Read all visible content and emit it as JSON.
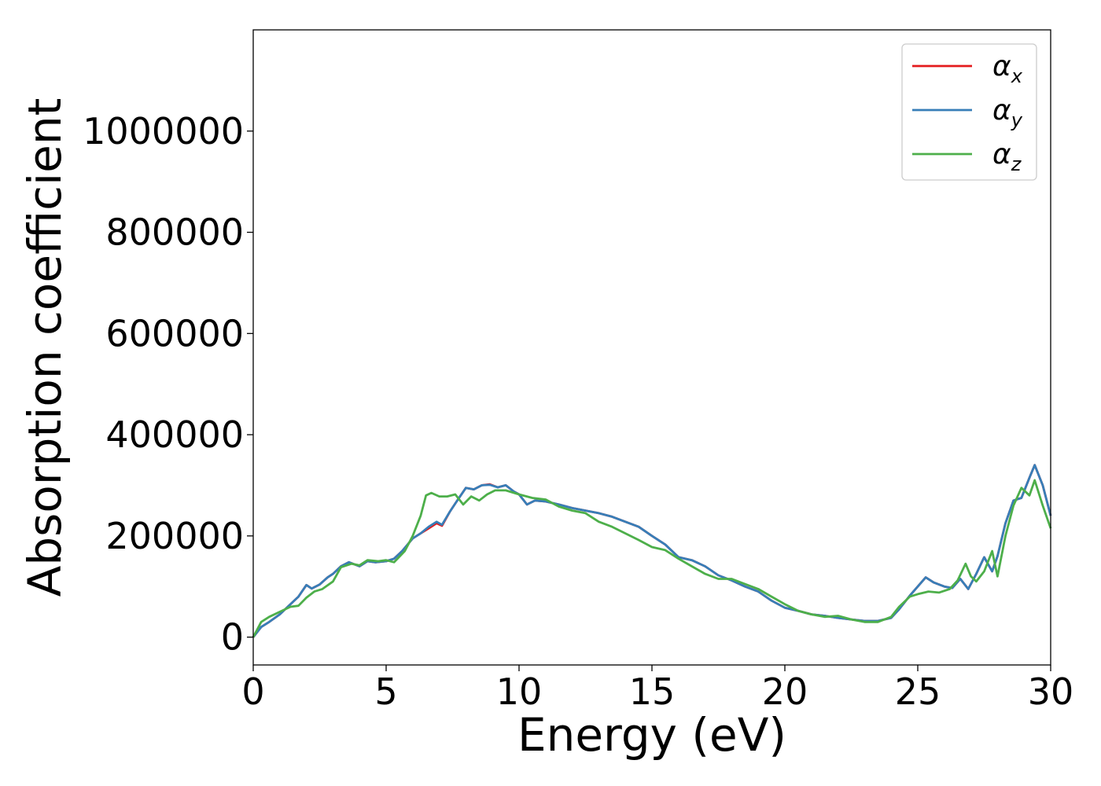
{
  "chart_data": {
    "type": "line",
    "title": "",
    "xlabel": "Energy (eV)",
    "ylabel": "Absorption coefficient",
    "xlim": [
      0,
      30
    ],
    "ylim": [
      -55000,
      1200000
    ],
    "xticks": [
      0,
      5,
      10,
      15,
      20,
      25,
      30
    ],
    "yticks": [
      0,
      200000,
      400000,
      600000,
      800000,
      1000000
    ],
    "grid": false,
    "legend_position": "top-right",
    "colors": {
      "x": "#e41a1c",
      "y": "#377eb8",
      "z": "#4daf4a"
    },
    "series": [
      {
        "key": "x",
        "label_base": "α",
        "label_sub": "x",
        "color": "#e41a1c",
        "x": [
          0,
          0.3,
          0.6,
          1.0,
          1.4,
          1.7,
          2.0,
          2.2,
          2.5,
          2.8,
          3.0,
          3.3,
          3.6,
          4.0,
          4.3,
          4.6,
          5.0,
          5.3,
          5.6,
          6.0,
          6.3,
          6.6,
          6.9,
          7.1,
          7.4,
          7.7,
          8.0,
          8.3,
          8.6,
          8.9,
          9.2,
          9.5,
          9.8,
          10.0,
          10.3,
          10.6,
          11.0,
          11.5,
          12.0,
          12.5,
          13.0,
          13.5,
          14.0,
          14.5,
          15.0,
          15.5,
          16.0,
          16.5,
          17.0,
          17.5,
          18.0,
          18.5,
          19.0,
          19.5,
          20.0,
          20.5,
          21.0,
          21.5,
          22.0,
          22.5,
          23.0,
          23.5,
          24.0,
          24.3,
          24.7,
          25.0,
          25.3,
          25.6,
          26.0,
          26.3,
          26.6,
          26.9,
          27.2,
          27.5,
          27.8,
          28.0,
          28.3,
          28.6,
          28.9,
          29.2,
          29.4,
          29.7,
          30.0
        ],
        "y": [
          0,
          20000,
          30000,
          45000,
          65000,
          80000,
          103000,
          96000,
          104000,
          118000,
          125000,
          140000,
          148000,
          140000,
          150000,
          148000,
          150000,
          155000,
          170000,
          195000,
          205000,
          215000,
          225000,
          220000,
          248000,
          272000,
          295000,
          292000,
          300000,
          302000,
          296000,
          300000,
          288000,
          282000,
          262000,
          270000,
          268000,
          262000,
          255000,
          250000,
          245000,
          238000,
          228000,
          218000,
          200000,
          183000,
          158000,
          152000,
          140000,
          122000,
          112000,
          100000,
          90000,
          72000,
          58000,
          52000,
          45000,
          42000,
          38000,
          35000,
          32000,
          32000,
          38000,
          55000,
          82000,
          100000,
          118000,
          108000,
          100000,
          97000,
          115000,
          95000,
          125000,
          158000,
          130000,
          160000,
          225000,
          270000,
          275000,
          315000,
          340000,
          300000,
          240000
        ]
      },
      {
        "key": "y",
        "label_base": "α",
        "label_sub": "y",
        "color": "#377eb8",
        "x": [
          0,
          0.3,
          0.6,
          1.0,
          1.4,
          1.7,
          2.0,
          2.2,
          2.5,
          2.8,
          3.0,
          3.3,
          3.6,
          4.0,
          4.3,
          4.6,
          5.0,
          5.3,
          5.6,
          6.0,
          6.3,
          6.6,
          6.9,
          7.1,
          7.4,
          7.7,
          8.0,
          8.3,
          8.6,
          8.9,
          9.2,
          9.5,
          9.8,
          10.0,
          10.3,
          10.6,
          11.0,
          11.5,
          12.0,
          12.5,
          13.0,
          13.5,
          14.0,
          14.5,
          15.0,
          15.5,
          16.0,
          16.5,
          17.0,
          17.5,
          18.0,
          18.5,
          19.0,
          19.5,
          20.0,
          20.5,
          21.0,
          21.5,
          22.0,
          22.5,
          23.0,
          23.5,
          24.0,
          24.3,
          24.7,
          25.0,
          25.3,
          25.6,
          26.0,
          26.3,
          26.6,
          26.9,
          27.2,
          27.5,
          27.8,
          28.0,
          28.3,
          28.6,
          28.9,
          29.2,
          29.4,
          29.7,
          30.0
        ],
        "y": [
          0,
          20000,
          30000,
          45000,
          65000,
          80000,
          103000,
          96000,
          104000,
          118000,
          125000,
          140000,
          148000,
          140000,
          150000,
          148000,
          150000,
          155000,
          170000,
          195000,
          205000,
          218000,
          228000,
          222000,
          248000,
          272000,
          295000,
          292000,
          300000,
          301000,
          296000,
          300000,
          288000,
          282000,
          262000,
          270000,
          268000,
          262000,
          255000,
          250000,
          245000,
          238000,
          228000,
          218000,
          200000,
          183000,
          158000,
          152000,
          140000,
          122000,
          112000,
          100000,
          90000,
          72000,
          58000,
          52000,
          45000,
          42000,
          38000,
          35000,
          32000,
          32000,
          38000,
          55000,
          82000,
          100000,
          118000,
          108000,
          100000,
          97000,
          115000,
          95000,
          125000,
          158000,
          130000,
          160000,
          225000,
          270000,
          275000,
          315000,
          340000,
          300000,
          240000
        ]
      },
      {
        "key": "z",
        "label_base": "α",
        "label_sub": "z",
        "color": "#4daf4a",
        "x": [
          0,
          0.3,
          0.6,
          1.0,
          1.4,
          1.7,
          2.0,
          2.3,
          2.6,
          3.0,
          3.3,
          3.7,
          4.0,
          4.3,
          4.7,
          5.0,
          5.3,
          5.7,
          6.0,
          6.3,
          6.5,
          6.7,
          7.0,
          7.3,
          7.6,
          7.9,
          8.2,
          8.5,
          8.8,
          9.1,
          9.5,
          10.0,
          10.5,
          11.0,
          11.5,
          12.0,
          12.5,
          13.0,
          13.5,
          14.0,
          14.5,
          15.0,
          15.5,
          16.0,
          16.5,
          17.0,
          17.5,
          18.0,
          18.5,
          19.0,
          19.5,
          20.0,
          20.5,
          21.0,
          21.5,
          22.0,
          22.5,
          23.0,
          23.5,
          24.0,
          24.3,
          24.7,
          25.0,
          25.4,
          25.8,
          26.2,
          26.5,
          26.8,
          27.0,
          27.2,
          27.5,
          27.8,
          28.0,
          28.3,
          28.6,
          28.9,
          29.2,
          29.4,
          29.7,
          30.0
        ],
        "y": [
          0,
          30000,
          40000,
          50000,
          60000,
          62000,
          78000,
          90000,
          95000,
          110000,
          138000,
          145000,
          142000,
          152000,
          150000,
          152000,
          148000,
          170000,
          200000,
          240000,
          280000,
          285000,
          278000,
          278000,
          282000,
          262000,
          278000,
          270000,
          282000,
          290000,
          290000,
          282000,
          275000,
          272000,
          258000,
          250000,
          245000,
          228000,
          218000,
          205000,
          192000,
          178000,
          172000,
          155000,
          140000,
          125000,
          115000,
          115000,
          105000,
          95000,
          80000,
          65000,
          52000,
          45000,
          40000,
          42000,
          35000,
          30000,
          30000,
          40000,
          60000,
          80000,
          85000,
          90000,
          88000,
          95000,
          112000,
          145000,
          120000,
          110000,
          130000,
          170000,
          120000,
          200000,
          260000,
          295000,
          280000,
          310000,
          260000,
          215000
        ]
      }
    ]
  }
}
